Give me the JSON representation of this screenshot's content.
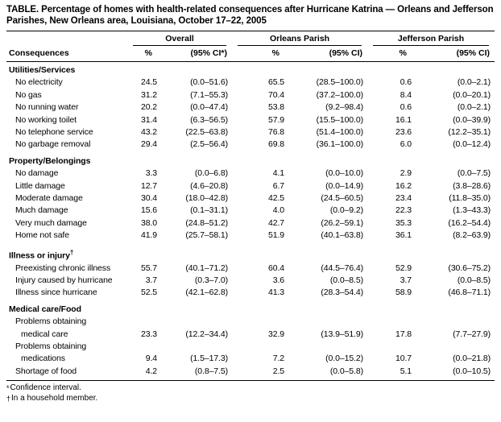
{
  "title": "TABLE. Percentage of homes with health-related consequences after Hurricane Katrina — Orleans and Jefferson Parishes, New Orleans area, Louisiana, October 17–22, 2005",
  "table": {
    "row_header": "Consequences",
    "column_groups": [
      {
        "label": "Overall",
        "subcols": [
          "%",
          "(95% CI*)"
        ]
      },
      {
        "label": "Orleans Parish",
        "subcols": [
          "%",
          "(95% CI)"
        ]
      },
      {
        "label": "Jefferson Parish",
        "subcols": [
          "%",
          "(95% CI)"
        ]
      }
    ],
    "sections": [
      {
        "label": "Utilities/Services",
        "rows": [
          {
            "label": "No electricity",
            "values": [
              "24.5",
              "(0.0–51.6)",
              "65.5",
              "(28.5–100.0)",
              "0.6",
              "(0.0–2.1)"
            ]
          },
          {
            "label": "No gas",
            "values": [
              "31.2",
              "(7.1–55.3)",
              "70.4",
              "(37.2–100.0)",
              "8.4",
              "(0.0–20.1)"
            ]
          },
          {
            "label": "No running water",
            "values": [
              "20.2",
              "(0.0–47.4)",
              "53.8",
              "(9.2–98.4)",
              "0.6",
              "(0.0–2.1)"
            ]
          },
          {
            "label": "No working toilet",
            "values": [
              "31.4",
              "(6.3–56.5)",
              "57.9",
              "(15.5–100.0)",
              "16.1",
              "(0.0–39.9)"
            ]
          },
          {
            "label": "No telephone service",
            "values": [
              "43.2",
              "(22.5–63.8)",
              "76.8",
              "(51.4–100.0)",
              "23.6",
              "(12.2–35.1)"
            ]
          },
          {
            "label": "No garbage removal",
            "values": [
              "29.4",
              "(2.5–56.4)",
              "69.8",
              "(36.1–100.0)",
              "6.0",
              "(0.0–12.4)"
            ]
          }
        ]
      },
      {
        "label": "Property/Belongings",
        "rows": [
          {
            "label": "No damage",
            "values": [
              "3.3",
              "(0.0–6.8)",
              "4.1",
              "(0.0–10.0)",
              "2.9",
              "(0.0–7.5)"
            ]
          },
          {
            "label": "Little damage",
            "values": [
              "12.7",
              "(4.6–20.8)",
              "6.7",
              "(0.0–14.9)",
              "16.2",
              "(3.8–28.6)"
            ]
          },
          {
            "label": "Moderate damage",
            "values": [
              "30.4",
              "(18.0–42.8)",
              "42.5",
              "(24.5–60.5)",
              "23.4",
              "(11.8–35.0)"
            ]
          },
          {
            "label": "Much damage",
            "values": [
              "15.6",
              "(0.1–31.1)",
              "4.0",
              "(0.0–9.2)",
              "22.3",
              "(1.3–43.3)"
            ]
          },
          {
            "label": "Very much damage",
            "values": [
              "38.0",
              "(24.8–51.2)",
              "42.7",
              "(26.2–59.1)",
              "35.3",
              "(16.2–54.4)"
            ]
          },
          {
            "label": "Home not safe",
            "values": [
              "41.9",
              "(25.7–58.1)",
              "51.9",
              "(40.1–63.8)",
              "36.1",
              "(8.2–63.9)"
            ]
          }
        ]
      },
      {
        "label": "Illness or injury",
        "sup": "†",
        "rows": [
          {
            "label": "Preexisting chronic illness",
            "values": [
              "55.7",
              "(40.1–71.2)",
              "60.4",
              "(44.5–76.4)",
              "52.9",
              "(30.6–75.2)"
            ]
          },
          {
            "label": "Injury caused by hurricane",
            "values": [
              "3.7",
              "(0.3–7.0)",
              "3.6",
              "(0.0–8.5)",
              "3.7",
              "(0.0–8.5)"
            ]
          },
          {
            "label": "Illness since hurricane",
            "values": [
              "52.5",
              "(42.1–62.8)",
              "41.3",
              "(28.3–54.4)",
              "58.9",
              "(46.8–71.1)"
            ]
          }
        ]
      },
      {
        "label": "Medical care/Food",
        "rows": [
          {
            "label_lines": [
              "Problems obtaining",
              "medical care"
            ],
            "values": [
              "23.3",
              "(12.2–34.4)",
              "32.9",
              "(13.9–51.9)",
              "17.8",
              "(7.7–27.9)"
            ]
          },
          {
            "label_lines": [
              "Problems obtaining",
              "medications"
            ],
            "values": [
              "9.4",
              "(1.5–17.3)",
              "7.2",
              "(0.0–15.2)",
              "10.7",
              "(0.0–21.8)"
            ]
          },
          {
            "label": "Shortage of food",
            "values": [
              "4.2",
              "(0.8–7.5)",
              "2.5",
              "(0.0–5.8)",
              "5.1",
              "(0.0–10.5)"
            ]
          }
        ]
      }
    ]
  },
  "footnotes": [
    {
      "marker": "*",
      "text": "Confidence interval."
    },
    {
      "marker": "†",
      "text": "In a household member."
    }
  ]
}
